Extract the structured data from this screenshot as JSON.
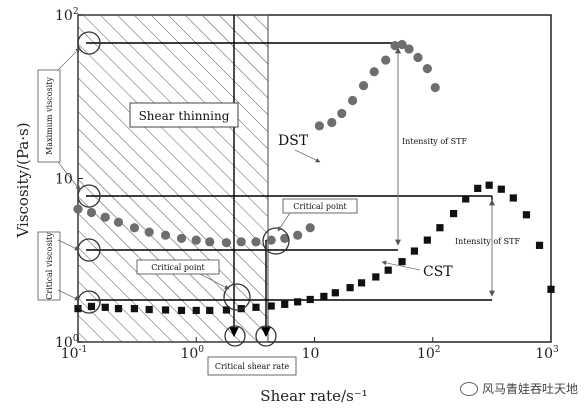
{
  "chart_data": {
    "type": "scatter",
    "xlabel": "Shear rate/s⁻¹",
    "ylabel": "Viscosity/(Pa·s)",
    "x_scale": "log",
    "y_scale": "log",
    "xlim": [
      0.1,
      1000
    ],
    "ylim": [
      1,
      100
    ],
    "x_ticks": [
      {
        "value": 0.1,
        "base": "10",
        "exp": "-1"
      },
      {
        "value": 1,
        "base": "10",
        "exp": "0"
      },
      {
        "value": 10,
        "base": "10",
        "exp": ""
      },
      {
        "value": 100,
        "base": "10",
        "exp": "2"
      },
      {
        "value": 1000,
        "base": "10",
        "exp": "3"
      }
    ],
    "y_ticks": [
      {
        "value": 1,
        "base": "10",
        "exp": "0"
      },
      {
        "value": 10,
        "base": "10",
        "exp": ""
      },
      {
        "value": 100,
        "base": "10",
        "exp": "2"
      }
    ],
    "series": [
      {
        "name": "DST",
        "marker": "circle",
        "points": [
          [
            0.1,
            6.5
          ],
          [
            0.13,
            6.2
          ],
          [
            0.17,
            5.8
          ],
          [
            0.22,
            5.4
          ],
          [
            0.3,
            5.0
          ],
          [
            0.4,
            4.7
          ],
          [
            0.55,
            4.5
          ],
          [
            0.75,
            4.3
          ],
          [
            1.0,
            4.2
          ],
          [
            1.3,
            4.1
          ],
          [
            1.8,
            4.05
          ],
          [
            2.4,
            4.1
          ],
          [
            3.2,
            4.1
          ],
          [
            4.3,
            4.2
          ],
          [
            5.6,
            4.3
          ],
          [
            7.2,
            4.5
          ],
          [
            9.2,
            5.0
          ],
          [
            11,
            21
          ],
          [
            14,
            22
          ],
          [
            17,
            25
          ],
          [
            21,
            30
          ],
          [
            26,
            37
          ],
          [
            32,
            45
          ],
          [
            40,
            53
          ],
          [
            48,
            65
          ],
          [
            55,
            66
          ],
          [
            63,
            62
          ],
          [
            75,
            55
          ],
          [
            90,
            47
          ],
          [
            105,
            36
          ]
        ]
      },
      {
        "name": "CST",
        "marker": "square",
        "points": [
          [
            0.1,
            1.6
          ],
          [
            0.13,
            1.65
          ],
          [
            0.17,
            1.63
          ],
          [
            0.22,
            1.6
          ],
          [
            0.3,
            1.6
          ],
          [
            0.4,
            1.58
          ],
          [
            0.55,
            1.57
          ],
          [
            0.75,
            1.56
          ],
          [
            1.0,
            1.56
          ],
          [
            1.3,
            1.56
          ],
          [
            1.8,
            1.57
          ],
          [
            2.4,
            1.6
          ],
          [
            3.2,
            1.63
          ],
          [
            4.3,
            1.66
          ],
          [
            5.6,
            1.7
          ],
          [
            7.2,
            1.76
          ],
          [
            9.2,
            1.82
          ],
          [
            12,
            1.9
          ],
          [
            15,
            2.0
          ],
          [
            20,
            2.15
          ],
          [
            25,
            2.3
          ],
          [
            33,
            2.5
          ],
          [
            42,
            2.75
          ],
          [
            55,
            3.1
          ],
          [
            70,
            3.6
          ],
          [
            90,
            4.2
          ],
          [
            115,
            5.0
          ],
          [
            150,
            6.1
          ],
          [
            190,
            7.5
          ],
          [
            240,
            8.7
          ],
          [
            300,
            9.1
          ],
          [
            380,
            8.6
          ],
          [
            480,
            7.6
          ],
          [
            620,
            6.0
          ],
          [
            800,
            3.9
          ],
          [
            1000,
            2.1
          ]
        ]
      }
    ],
    "labels": {
      "shear_thinning": "Shear thinning",
      "dst": "DST",
      "cst": "CST",
      "intensity_dst": "Intensity of STF",
      "intensity_cst": "Intensity of STF",
      "critical_point_top": "Critical point",
      "critical_point_bottom": "Critical point",
      "critical_shear_rate": "Critical shear rate",
      "maximum_viscosity": "Maximum viscosity",
      "critical_viscosity": "Critical viscosity"
    }
  },
  "watermark": {
    "text": "风马眚娃吞吐天地"
  }
}
